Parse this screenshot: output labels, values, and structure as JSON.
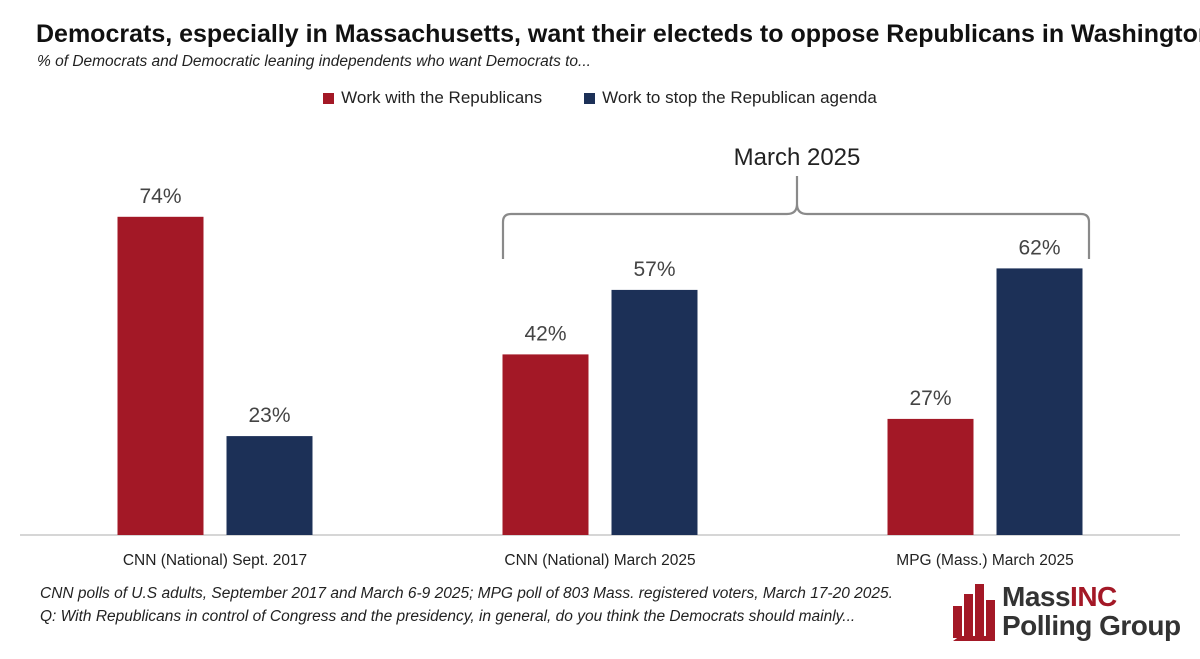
{
  "title": "Democrats, especially in Massachusetts, want their electeds to oppose Republicans in Washington",
  "subtitle": "% of Democrats and Democratic leaning independents who want Democrats to...",
  "colors": {
    "work_with": "#a31826",
    "stop": "#1c3057",
    "brace": "#8a8a8a",
    "axis": "#c8c8c8"
  },
  "bracket_label": "March 2025",
  "chart_data": {
    "type": "bar",
    "categories": [
      "CNN (National) Sept. 2017",
      "CNN (National) March 2025",
      "MPG (Mass.) March 2025"
    ],
    "series": [
      {
        "name": "Work with the Republicans",
        "values": [
          74,
          42,
          27
        ],
        "labels": [
          "74%",
          "42%",
          "27%"
        ]
      },
      {
        "name": "Work to stop the Republican agenda",
        "values": [
          23,
          57,
          62
        ],
        "labels": [
          "23%",
          "57%",
          "62%"
        ]
      }
    ],
    "ylim": [
      0,
      100
    ],
    "legend_position": "top-center",
    "grid": false
  },
  "notes": {
    "line1": "CNN polls of U.S adults, September 2017 and March 6-9 2025; MPG poll of 803 Mass. registered voters, March 17-20 2025.",
    "line2": "Q: With Republicans in control of Congress and the presidency, in general, do you think the Democrats should mainly..."
  },
  "logo": {
    "part1": "Mass",
    "part2": "INC",
    "line2": "Polling Group",
    "icon": "bar-chart-logo-icon"
  }
}
